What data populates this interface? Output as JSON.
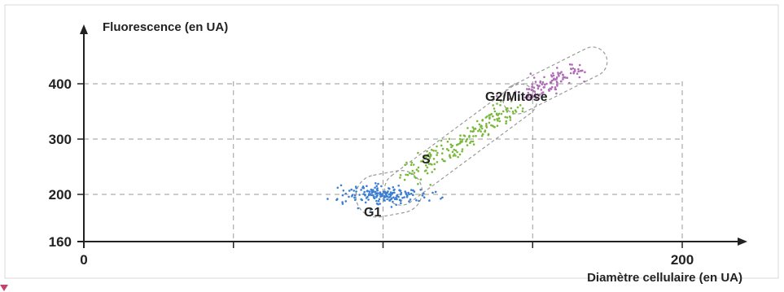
{
  "chart_data": {
    "type": "scatter",
    "title": "",
    "xlabel": "Diamètre cellulaire (en UA)",
    "ylabel": "Fluorescence (en UA)",
    "xlim": [
      0,
      220
    ],
    "ylim": [
      160,
      460
    ],
    "x_ticks": [
      0,
      200
    ],
    "x_tick_labels": [
      "0",
      "200"
    ],
    "y_ticks": [
      160,
      200,
      300,
      400
    ],
    "y_tick_labels": [
      "160",
      "200",
      "300",
      "400"
    ],
    "grid": true,
    "series": [
      {
        "name": "G1",
        "color": "#3b7fd1",
        "center": [
          100,
          200
        ],
        "spread": [
          7,
          9
        ],
        "count": 180
      },
      {
        "name": "S",
        "color": "#7ab83a",
        "from": [
          108,
          225
        ],
        "to": [
          143,
          360
        ],
        "spread": [
          3,
          7
        ],
        "count": 190
      },
      {
        "name": "G2/Mitose",
        "color": "#b06ab8",
        "from": [
          147,
          375
        ],
        "to": [
          165,
          430
        ],
        "spread": [
          3,
          6
        ],
        "count": 110
      }
    ],
    "annotations": [
      "G1",
      "S",
      "G2/Mitose"
    ]
  }
}
